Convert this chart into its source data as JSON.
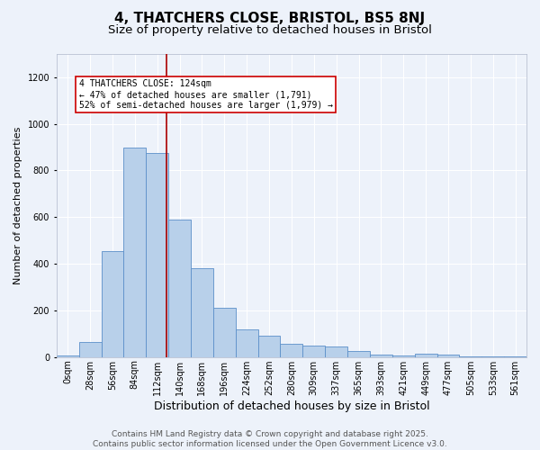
{
  "title": "4, THATCHERS CLOSE, BRISTOL, BS5 8NJ",
  "subtitle": "Size of property relative to detached houses in Bristol",
  "xlabel": "Distribution of detached houses by size in Bristol",
  "ylabel": "Number of detached properties",
  "categories": [
    "0sqm",
    "28sqm",
    "56sqm",
    "84sqm",
    "112sqm",
    "140sqm",
    "168sqm",
    "196sqm",
    "224sqm",
    "252sqm",
    "280sqm",
    "309sqm",
    "337sqm",
    "365sqm",
    "393sqm",
    "421sqm",
    "449sqm",
    "477sqm",
    "505sqm",
    "533sqm",
    "561sqm"
  ],
  "values": [
    5,
    65,
    455,
    900,
    875,
    590,
    380,
    210,
    120,
    90,
    55,
    50,
    45,
    25,
    12,
    5,
    15,
    10,
    3,
    2,
    1
  ],
  "bar_color": "#b8d0ea",
  "bar_edge_color": "#5b8fc9",
  "bg_color": "#edf2fa",
  "grid_color": "#ffffff",
  "vline_color": "#aa0000",
  "annotation_text": "4 THATCHERS CLOSE: 124sqm\n← 47% of detached houses are smaller (1,791)\n52% of semi-detached houses are larger (1,979) →",
  "annotation_box_color": "#ffffff",
  "annotation_box_edge": "#cc0000",
  "ylim": [
    0,
    1300
  ],
  "yticks": [
    0,
    200,
    400,
    600,
    800,
    1000,
    1200
  ],
  "footer_text": "Contains HM Land Registry data © Crown copyright and database right 2025.\nContains public sector information licensed under the Open Government Licence v3.0.",
  "title_fontsize": 11,
  "subtitle_fontsize": 9.5,
  "xlabel_fontsize": 9,
  "ylabel_fontsize": 8,
  "tick_fontsize": 7,
  "footer_fontsize": 6.5
}
